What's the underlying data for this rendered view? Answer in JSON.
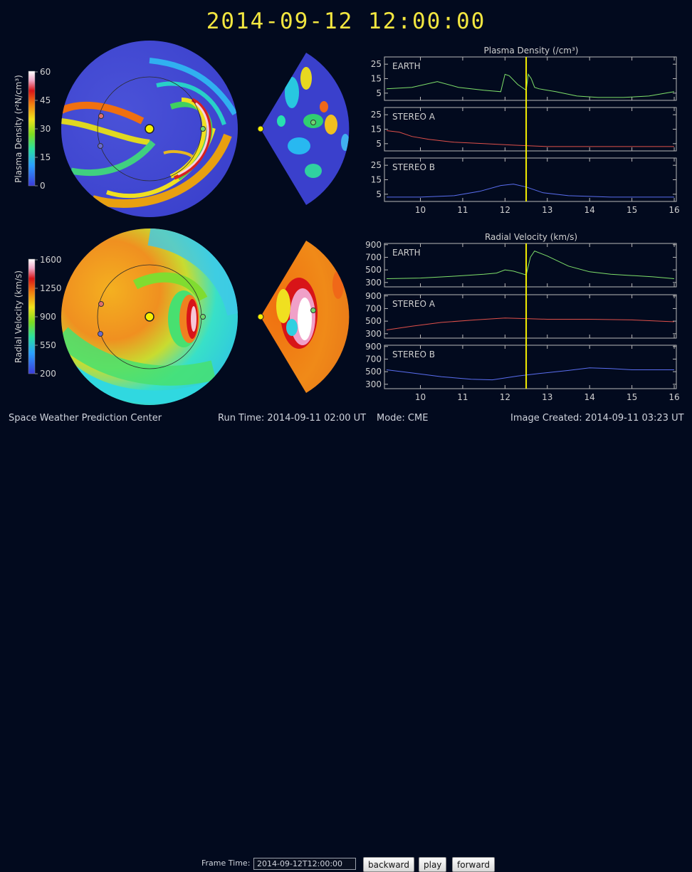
{
  "header": {
    "timestamp": "2014-09-12  12:00:00"
  },
  "colorbars": {
    "density": {
      "label": "Plasma Density (r²N/cm³)",
      "ticks": [
        "60",
        "45",
        "30",
        "15",
        "0"
      ]
    },
    "velocity": {
      "label": "Radial Velocity (km/s)",
      "ticks": [
        "1600",
        "1250",
        "900",
        "550",
        "200"
      ]
    }
  },
  "panels": {
    "density_title": "Plasma Density (/cm³)",
    "velocity_title": "Radial Velocity (km/s)",
    "density_series": [
      "EARTH",
      "STEREO A",
      "STEREO B"
    ],
    "velocity_series": [
      "EARTH",
      "STEREO A",
      "STEREO B"
    ],
    "x_ticks": [
      "10",
      "11",
      "12",
      "13",
      "14",
      "15",
      "16"
    ],
    "density_y_ticks": [
      "25",
      "15",
      "5"
    ],
    "velocity_y_ticks_earth": [
      "900",
      "700",
      "500",
      "300"
    ],
    "velocity_y_ticks_stereo": [
      "900",
      "700",
      "500",
      "300"
    ]
  },
  "chart_data": [
    {
      "type": "line",
      "title": "Plasma Density (/cm³)",
      "series": [
        {
          "name": "EARTH",
          "x": [
            9.2,
            9.8,
            10.4,
            10.9,
            11.5,
            11.9,
            12.0,
            12.1,
            12.3,
            12.5,
            12.55,
            12.62,
            12.7,
            12.8,
            13.2,
            13.7,
            14.2,
            14.8,
            15.4,
            16.0
          ],
          "values": [
            8,
            9,
            13,
            9,
            7,
            6,
            18,
            17,
            11,
            7,
            18,
            15,
            9,
            8,
            6,
            3,
            2,
            2,
            3,
            6
          ]
        },
        {
          "name": "STEREO A",
          "x": [
            9.2,
            9.5,
            9.8,
            10.2,
            10.8,
            11.5,
            12.2,
            13.0,
            14.0,
            15.0,
            16.0
          ],
          "values": [
            14,
            13,
            10,
            8,
            6,
            5,
            4,
            3,
            3,
            3,
            3
          ]
        },
        {
          "name": "STEREO B",
          "x": [
            9.2,
            10.0,
            10.8,
            11.4,
            11.9,
            12.2,
            12.5,
            12.9,
            13.5,
            14.5,
            15.5,
            16.0
          ],
          "values": [
            3,
            3,
            4,
            7,
            11,
            12,
            10,
            6,
            4,
            3,
            3,
            3
          ]
        }
      ]
    },
    {
      "type": "line",
      "title": "Radial Velocity (km/s)",
      "series": [
        {
          "name": "EARTH",
          "x": [
            9.2,
            10.0,
            10.8,
            11.5,
            11.8,
            12.0,
            12.2,
            12.5,
            12.6,
            12.7,
            13.0,
            13.5,
            14.0,
            14.5,
            15.0,
            15.5,
            16.0
          ],
          "values": [
            360,
            370,
            400,
            430,
            450,
            500,
            480,
            420,
            700,
            800,
            720,
            560,
            470,
            430,
            410,
            390,
            360
          ]
        },
        {
          "name": "STEREO A",
          "x": [
            9.2,
            9.8,
            10.5,
            11.3,
            12.0,
            12.5,
            13.0,
            14.0,
            15.0,
            16.0
          ],
          "values": [
            360,
            420,
            480,
            520,
            550,
            540,
            530,
            530,
            520,
            490
          ]
        },
        {
          "name": "STEREO B",
          "x": [
            9.2,
            9.8,
            10.5,
            11.2,
            11.7,
            12.3,
            12.8,
            13.5,
            14.0,
            14.5,
            15.0,
            16.0
          ],
          "values": [
            530,
            480,
            420,
            380,
            370,
            430,
            470,
            520,
            560,
            550,
            530,
            530
          ]
        }
      ]
    }
  ],
  "footer": {
    "center": "Space Weather Prediction Center",
    "run_time": "Run Time: 2014-09-11 02:00 UT",
    "mode": "Mode: CME",
    "image_created": "Image Created: 2014-09-11 03:23 UT"
  },
  "controls": {
    "frame_label": "Frame Time:",
    "frame_value": "2014-09-12T12:00:00",
    "backward": "backward",
    "play": "play",
    "forward": "forward"
  },
  "colors": {
    "accent": "#f2e640",
    "earth": "#7fe06a",
    "stereo_a": "#e0504a",
    "stereo_b": "#5a6ef0",
    "cursor": "#f5f000"
  }
}
